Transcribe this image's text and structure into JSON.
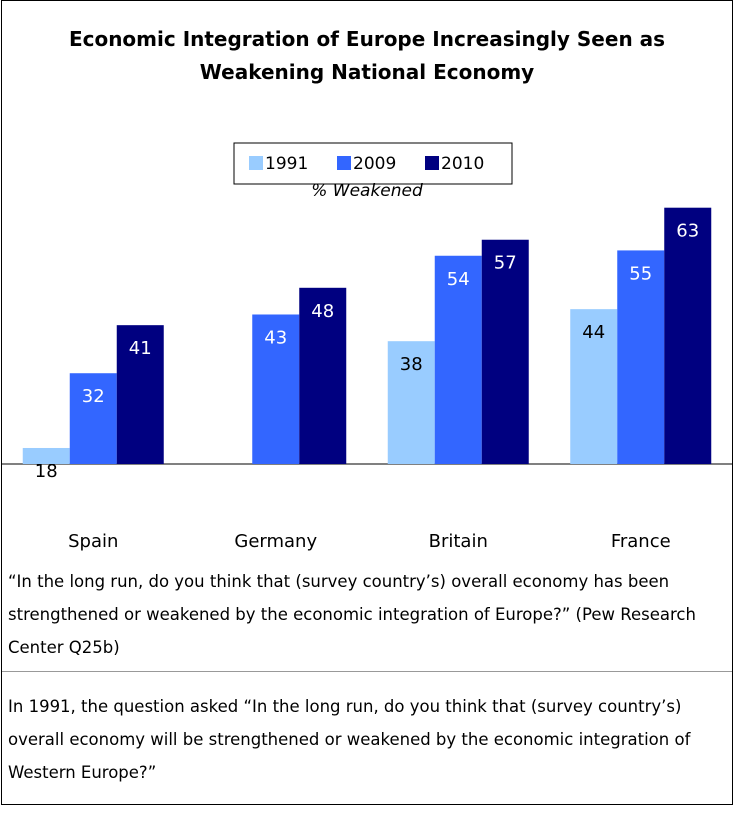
{
  "chart_data": {
    "type": "bar",
    "title": "Economic Integration of Europe Increasingly Seen as Weakening National Economy",
    "subtitle": "% Weakened",
    "categories": [
      "Spain",
      "Germany",
      "Britain",
      "France"
    ],
    "series": [
      {
        "name": "1991",
        "color": "#99ccff",
        "values": [
          18,
          null,
          38,
          44
        ]
      },
      {
        "name": "2009",
        "color": "#3366ff",
        "values": [
          32,
          43,
          54,
          55
        ]
      },
      {
        "name": "2010",
        "color": "#000080",
        "values": [
          41,
          48,
          57,
          63
        ]
      }
    ],
    "ylim": [
      15,
      68
    ],
    "notes": [
      "“In the long run, do you think that (survey country’s) overall economy has been strengthened or weakened by the economic integration of Europe?” (Pew Research Center Q25b)",
      "In 1991, the question asked “In the long run, do you think that (survey country’s) overall economy will be strengthened or weakened by the economic integration of Western Europe?”"
    ]
  }
}
